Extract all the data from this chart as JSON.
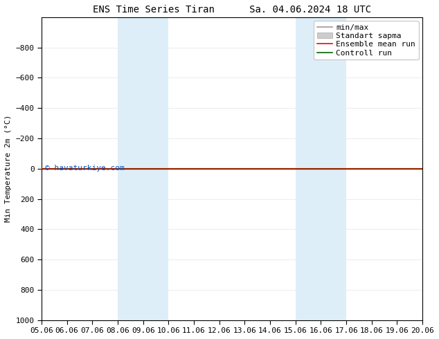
{
  "title": "ENS Time Series Tiran      Sa. 04.06.2024 18 UTC",
  "ylabel": "Min Temperature 2m (°C)",
  "ylim_bottom": 1000,
  "ylim_top": -1000,
  "yticks": [
    -800,
    -600,
    -400,
    -200,
    0,
    200,
    400,
    600,
    800,
    1000
  ],
  "xtick_labels": [
    "05.06",
    "06.06",
    "07.06",
    "08.06",
    "09.06",
    "10.06",
    "11.06",
    "12.06",
    "13.06",
    "14.06",
    "15.06",
    "16.06",
    "17.06",
    "18.06",
    "19.06",
    "20.06"
  ],
  "shaded_regions": [
    {
      "xmin": 3,
      "xmax": 4,
      "color": "#ddeef8",
      "alpha": 1.0
    },
    {
      "xmin": 4,
      "xmax": 5,
      "color": "#ddeef8",
      "alpha": 1.0
    },
    {
      "xmin": 10,
      "xmax": 11,
      "color": "#ddeef8",
      "alpha": 1.0
    },
    {
      "xmin": 11,
      "xmax": 12,
      "color": "#ddeef8",
      "alpha": 1.0
    }
  ],
  "control_run_color": "#006600",
  "ensemble_mean_color": "#ff0000",
  "minmax_color": "#999999",
  "stddev_color": "#cccccc",
  "watermark": "© havaturkiye.com",
  "watermark_color": "#0055cc",
  "legend_entries": [
    "min/max",
    "Standart sapma",
    "Ensemble mean run",
    "Controll run"
  ],
  "background_color": "#ffffff",
  "plot_bg_color": "#ffffff",
  "title_fontsize": 10,
  "axis_fontsize": 8,
  "tick_fontsize": 8,
  "legend_fontsize": 8
}
